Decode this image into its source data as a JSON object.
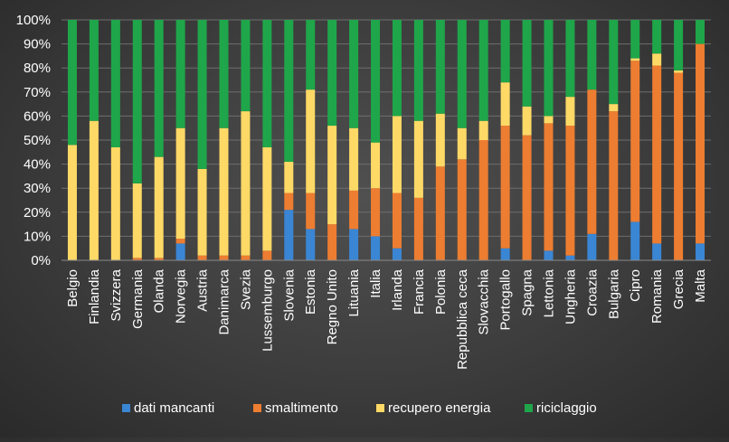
{
  "chart_data": {
    "type": "bar",
    "stacked": true,
    "percent": true,
    "title": "",
    "xlabel": "",
    "ylabel": "",
    "ylim": [
      0,
      100
    ],
    "yticks": [
      "0%",
      "10%",
      "20%",
      "30%",
      "40%",
      "50%",
      "60%",
      "70%",
      "80%",
      "90%",
      "100%"
    ],
    "grid": true,
    "legend_position": "bottom",
    "categories": [
      "Belgio",
      "Finlandia",
      "Svizzera",
      "Germania",
      "Olanda",
      "Norvegia",
      "Austria",
      "Danimarca",
      "Svezia",
      "Lussemburgo",
      "Slovenia",
      "Estonia",
      "Regno Unito",
      "Lituania",
      "Italia",
      "Irlanda",
      "Francia",
      "Polonia",
      "Repubblica ceca",
      "Slovacchia",
      "Portogallo",
      "Spagna",
      "Lettonia",
      "Ungheria",
      "Croazia",
      "Bulgaria",
      "Cipro",
      "Romania",
      "Grecia",
      "Malta"
    ],
    "series": [
      {
        "name": "dati mancanti",
        "color": "#3a86d4",
        "values": [
          0,
          0,
          0,
          0,
          0,
          7,
          0,
          0,
          0,
          0,
          21,
          13,
          0,
          13,
          10,
          5,
          0,
          0,
          0,
          0,
          5,
          0,
          4,
          2,
          11,
          0,
          16,
          7,
          0,
          7
        ]
      },
      {
        "name": "smaltimento",
        "color": "#ed7d31",
        "values": [
          0,
          0,
          0,
          1,
          1,
          2,
          2,
          2,
          2,
          4,
          7,
          15,
          15,
          16,
          20,
          23,
          26,
          39,
          42,
          50,
          51,
          52,
          53,
          54,
          60,
          62,
          67,
          74,
          78,
          83
        ]
      },
      {
        "name": "recupero energia",
        "color": "#ffd966",
        "values": [
          48,
          58,
          47,
          31,
          42,
          46,
          36,
          53,
          60,
          43,
          13,
          43,
          41,
          26,
          19,
          32,
          32,
          22,
          13,
          8,
          18,
          12,
          3,
          12,
          0,
          3,
          1,
          5,
          1,
          0
        ]
      },
      {
        "name": "riciclaggio",
        "color": "#1fa64a",
        "values": [
          52,
          42,
          53,
          68,
          57,
          45,
          62,
          45,
          38,
          53,
          59,
          29,
          44,
          45,
          51,
          40,
          42,
          39,
          45,
          42,
          26,
          36,
          40,
          32,
          29,
          35,
          16,
          14,
          21,
          10
        ]
      }
    ]
  }
}
